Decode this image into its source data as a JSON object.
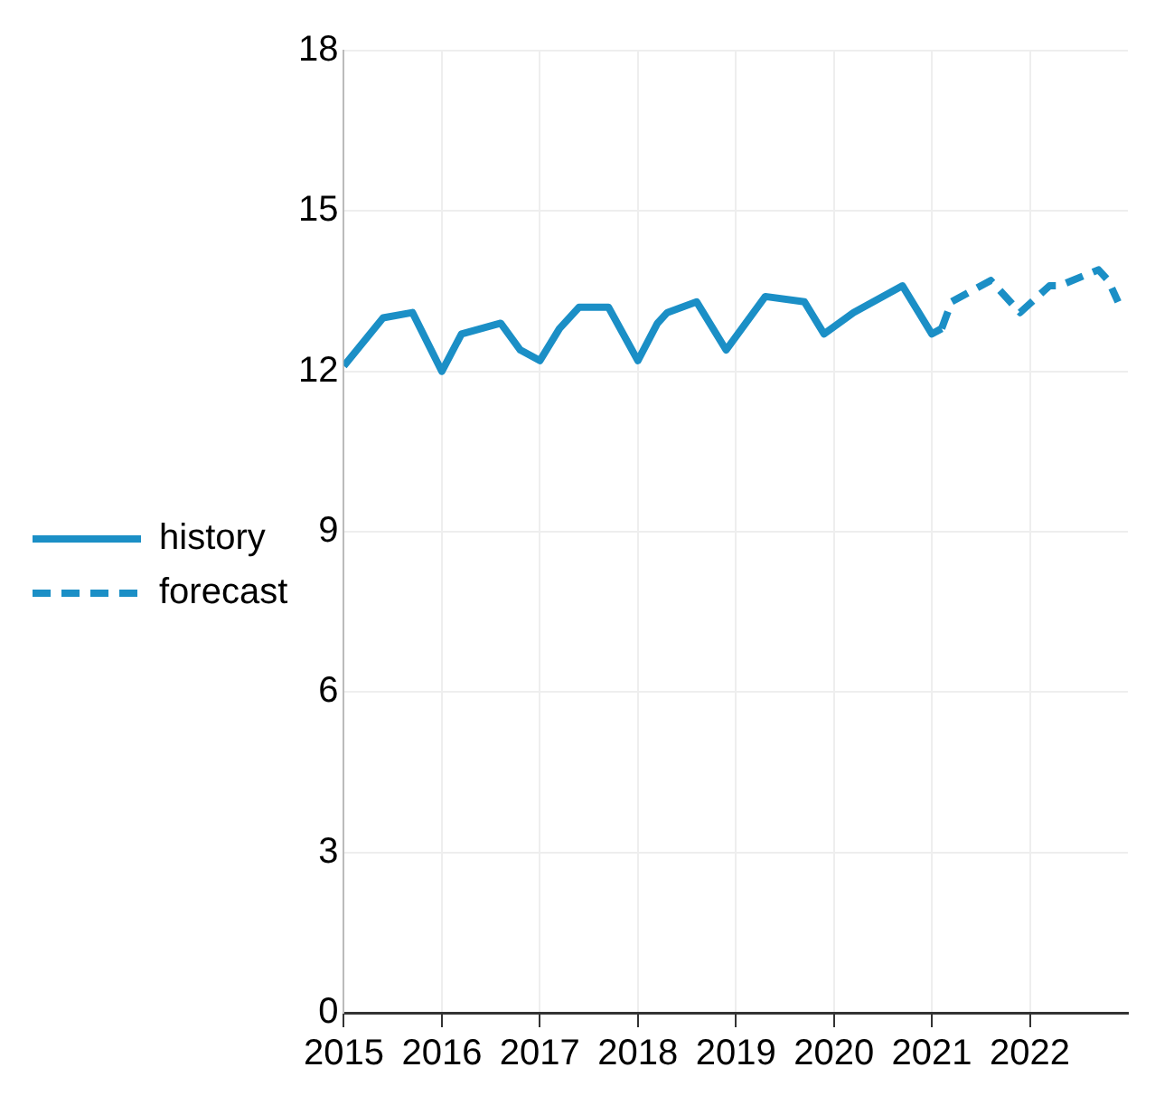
{
  "chart_data": {
    "type": "line",
    "xlim": [
      2015,
      2023
    ],
    "xticks": [
      2015,
      2016,
      2017,
      2018,
      2019,
      2020,
      2021,
      2022
    ],
    "ylim": [
      0,
      18
    ],
    "yticks": [
      0,
      3,
      6,
      9,
      12,
      15,
      18
    ],
    "grid": true,
    "legend": "left",
    "marker": "none",
    "series": [
      {
        "name": "history",
        "color": "#1b8fc6",
        "line_style": "solid",
        "x": [
          2015.0,
          2015.4,
          2015.7,
          2016.0,
          2016.2,
          2016.6,
          2016.8,
          2017.0,
          2017.2,
          2017.4,
          2017.7,
          2018.0,
          2018.2,
          2018.3,
          2018.6,
          2018.9,
          2019.3,
          2019.7,
          2019.9,
          2020.2,
          2020.7,
          2021.0,
          2021.1
        ],
        "values": [
          12.1,
          13.0,
          13.1,
          12.0,
          12.7,
          12.9,
          12.4,
          12.2,
          12.8,
          13.2,
          13.2,
          12.2,
          12.9,
          13.1,
          13.3,
          12.4,
          13.4,
          13.3,
          12.7,
          13.1,
          13.6,
          12.7,
          12.8
        ]
      },
      {
        "name": "forecast",
        "color": "#1b8fc6",
        "line_style": "dashed",
        "x": [
          2021.1,
          2021.2,
          2021.6,
          2021.9,
          2022.2,
          2022.3,
          2022.7,
          2022.8,
          2022.9
        ],
        "values": [
          12.8,
          13.3,
          13.7,
          13.1,
          13.6,
          13.6,
          13.9,
          13.7,
          13.3
        ]
      }
    ]
  }
}
